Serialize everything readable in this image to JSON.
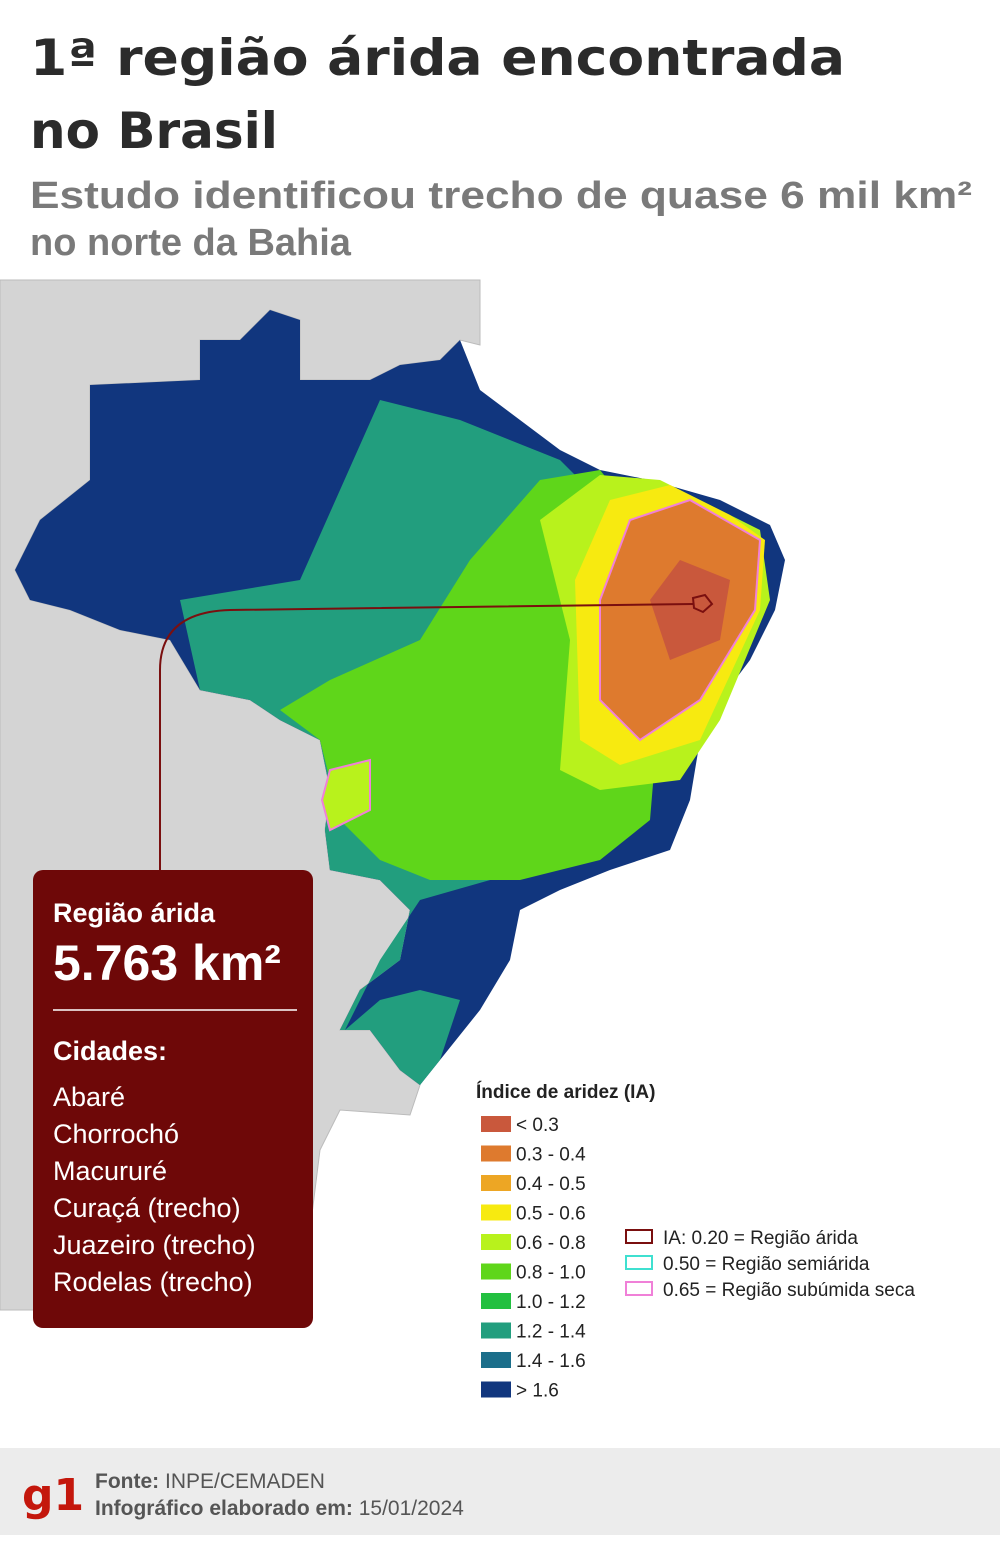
{
  "title_lines": [
    "1ª região árida encontrada",
    "no Brasil"
  ],
  "subtitle_lines": [
    "Estudo identificou trecho de quase 6 mil km²",
    "no norte da Bahia"
  ],
  "callout": {
    "label": "Região árida",
    "area": "5.763 km²",
    "cities_title": "Cidades:",
    "cities": [
      "Abaré",
      "Chorrochó",
      "Macururé",
      "Curaçá (trecho)",
      "Juazeiro (trecho)",
      "Rodelas (trecho)"
    ]
  },
  "legend": {
    "title": "Índice de aridez (IA)",
    "items": [
      {
        "label": "< 0.3",
        "color": "#c9583c"
      },
      {
        "label": "0.3 - 0.4",
        "color": "#de7a2e"
      },
      {
        "label": "0.4 - 0.5",
        "color": "#eda624"
      },
      {
        "label": "0.5 - 0.6",
        "color": "#f7ea10"
      },
      {
        "label": "0.6 - 0.8",
        "color": "#b8f21c"
      },
      {
        "label": "0.8 - 1.0",
        "color": "#5fd61a"
      },
      {
        "label": "1.0 - 1.2",
        "color": "#22c040"
      },
      {
        "label": "1.2 - 1.4",
        "color": "#229e7e"
      },
      {
        "label": "1.4 - 1.6",
        "color": "#1b6e8a"
      },
      {
        "label": "> 1.6",
        "color": "#11367e"
      }
    ]
  },
  "outline_legend": [
    {
      "label": "IA: 0.20 = Região árida",
      "color": "#7a0f0f"
    },
    {
      "label": "0.50 = Região semiárida",
      "color": "#3fe0d0"
    },
    {
      "label": "0.65 = Região subúmida seca",
      "color": "#f080d8"
    }
  ],
  "footer": {
    "logo": "g1",
    "source_label": "Fonte:",
    "source": "INPE/CEMADEN",
    "date_label": "Infográfico elaborado em:",
    "date": "15/01/2024"
  }
}
